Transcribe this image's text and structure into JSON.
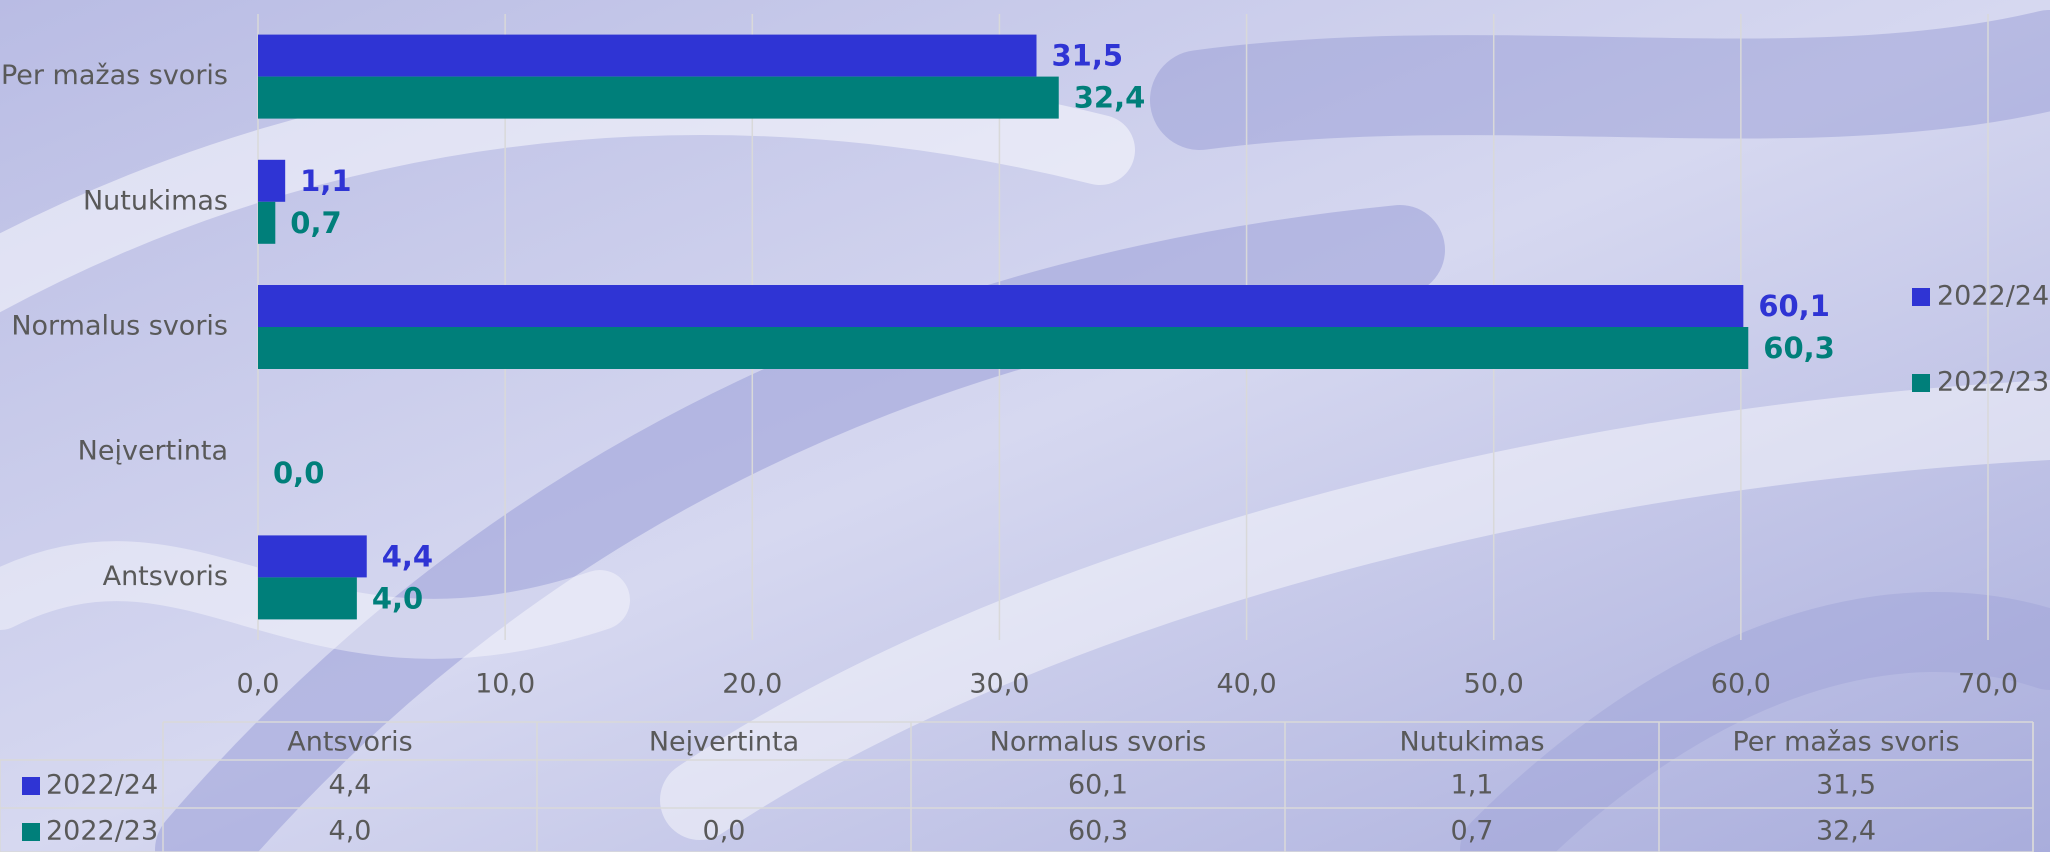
{
  "chart_data": {
    "type": "bar",
    "orientation": "horizontal",
    "categories": [
      "Antsvoris",
      "Neįvertinta",
      "Normalus svoris",
      "Nutukimas",
      "Per mažas svoris"
    ],
    "series": [
      {
        "name": "2022/24",
        "color": "#2f34d4",
        "values": [
          4.4,
          null,
          60.1,
          1.1,
          31.5
        ],
        "value_labels": [
          "4,4",
          null,
          "60,1",
          "1,1",
          "31,5"
        ]
      },
      {
        "name": "2022/23",
        "color": "#007f7a",
        "values": [
          4.0,
          0.0,
          60.3,
          0.7,
          32.4
        ],
        "value_labels": [
          "4,0",
          "0,0",
          "60,3",
          "0,7",
          "32,4"
        ]
      }
    ],
    "xlim": [
      0,
      70
    ],
    "xticks": [
      {
        "value": 0,
        "label": "0,0"
      },
      {
        "value": 10,
        "label": "10,0"
      },
      {
        "value": 20,
        "label": "20,0"
      },
      {
        "value": 30,
        "label": "30,0"
      },
      {
        "value": 40,
        "label": "40,0"
      },
      {
        "value": 50,
        "label": "50,0"
      },
      {
        "value": 60,
        "label": "60,0"
      },
      {
        "value": 70,
        "label": "70,0"
      }
    ],
    "grid": true,
    "legend": "right",
    "data_table": true
  }
}
